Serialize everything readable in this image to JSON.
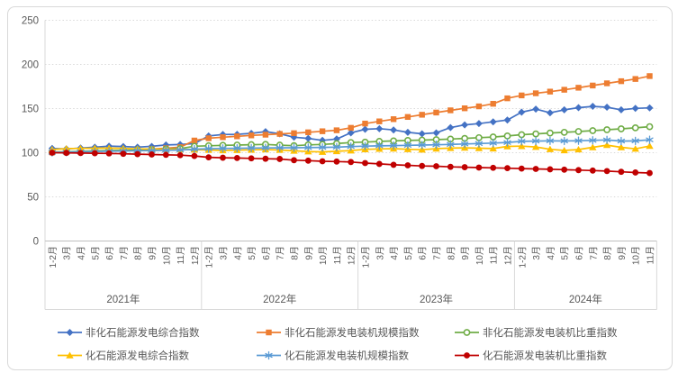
{
  "chart_data": {
    "type": "line",
    "title": "",
    "xlabel": "",
    "ylabel": "",
    "ylim": [
      0,
      250
    ],
    "y_ticks": [
      0,
      50,
      100,
      150,
      200,
      250
    ],
    "grid": true,
    "legend_position": "bottom",
    "colors": {
      "accent_blue": "#4472C4",
      "accent_orange": "#ED7D31",
      "accent_green": "#70AD47",
      "accent_yellow": "#FFC000",
      "accent_lightblue": "#5B9BD5",
      "accent_darkred": "#C00000",
      "grid_gray": "#d9d9d9",
      "axis_text": "#595959"
    },
    "years": [
      {
        "label": "2021年",
        "months": [
          "1-2月",
          "3月",
          "4月",
          "5月",
          "6月",
          "7月",
          "8月",
          "9月",
          "10月",
          "11月",
          "12月"
        ]
      },
      {
        "label": "2022年",
        "months": [
          "1-2月",
          "3月",
          "4月",
          "5月",
          "6月",
          "7月",
          "8月",
          "9月",
          "10月",
          "11月",
          "12月"
        ]
      },
      {
        "label": "2023年",
        "months": [
          "1-2月",
          "3月",
          "4月",
          "5月",
          "6月",
          "7月",
          "8月",
          "9月",
          "10月",
          "11月",
          "12月"
        ]
      },
      {
        "label": "2024年",
        "months": [
          "1-2月",
          "3月",
          "4月",
          "5月",
          "6月",
          "7月",
          "8月",
          "9月",
          "10月",
          "11月"
        ]
      }
    ],
    "series": [
      {
        "name": "非化石能源发电综合指数",
        "color": "#4472C4",
        "marker": "diamond",
        "values": [
          104.9,
          104.3,
          105.3,
          106.2,
          107.4,
          107.0,
          106.3,
          107.2,
          108.8,
          109.3,
          110.3,
          119.0,
          120.6,
          120.8,
          121.9,
          123.9,
          121.4,
          117.6,
          116.2,
          114.0,
          115.5,
          122.5,
          126.5,
          127.2,
          125.8,
          123.1,
          121.4,
          122.5,
          128.5,
          131.5,
          133.0,
          135.0,
          137.0,
          145.9,
          149.4,
          145.2,
          148.6,
          151.0,
          152.5,
          151.5,
          148.6,
          150.2,
          150.8
        ]
      },
      {
        "name": "非化石能源发电装机规模指数",
        "color": "#ED7D31",
        "marker": "square",
        "values": [
          100.3,
          100.6,
          101.0,
          101.5,
          102.1,
          102.6,
          103.3,
          104.1,
          105.1,
          106.3,
          113.8,
          116.4,
          117.6,
          118.6,
          119.6,
          120.4,
          121.3,
          122.1,
          123.1,
          124.3,
          125.4,
          128.2,
          133.0,
          135.5,
          138.0,
          140.5,
          143.0,
          145.5,
          148.0,
          150.3,
          152.5,
          155.4,
          161.6,
          164.9,
          167.3,
          169.2,
          171.3,
          173.6,
          176.1,
          178.6,
          181.0,
          183.5,
          186.8
        ]
      },
      {
        "name": "非化石能源发电装机比重指数",
        "color": "#70AD47",
        "marker": "circle-open",
        "values": [
          100.6,
          101.0,
          101.5,
          102.0,
          102.4,
          102.8,
          103.2,
          103.6,
          104.1,
          104.6,
          107.3,
          107.9,
          108.4,
          108.7,
          109.1,
          109.4,
          108.6,
          108.0,
          108.9,
          109.4,
          110.3,
          111.5,
          112.0,
          112.8,
          113.4,
          113.9,
          114.3,
          114.8,
          115.4,
          116.2,
          117.0,
          117.8,
          119.0,
          120.4,
          121.3,
          122.3,
          123.1,
          124.0,
          125.0,
          126.0,
          127.0,
          128.2,
          129.5
        ]
      },
      {
        "name": "化石能源发电综合指数",
        "color": "#FFC000",
        "marker": "triangle",
        "values": [
          103.6,
          104.6,
          104.9,
          105.1,
          105.2,
          104.9,
          104.4,
          104.1,
          103.9,
          103.6,
          103.4,
          103.1,
          102.6,
          102.9,
          103.3,
          103.6,
          103.1,
          102.1,
          101.3,
          100.9,
          101.6,
          102.4,
          103.8,
          104.3,
          104.6,
          103.9,
          103.4,
          104.6,
          105.2,
          105.5,
          105.1,
          104.7,
          107.1,
          107.4,
          106.5,
          103.9,
          102.6,
          103.6,
          106.1,
          108.6,
          106.1,
          104.4,
          107.6
        ]
      },
      {
        "name": "化石能源发电装机规模指数",
        "color": "#5B9BD5",
        "marker": "asterisk",
        "values": [
          100.4,
          100.7,
          101.0,
          101.3,
          101.6,
          101.9,
          102.2,
          102.5,
          102.8,
          103.1,
          104.0,
          104.5,
          104.8,
          105.0,
          105.2,
          105.4,
          105.5,
          105.6,
          105.8,
          106.0,
          106.3,
          106.9,
          107.5,
          107.8,
          108.1,
          108.4,
          108.7,
          109.0,
          109.4,
          109.9,
          110.4,
          110.9,
          111.6,
          112.9,
          113.2,
          113.5,
          113.3,
          113.6,
          114.0,
          114.5,
          113.2,
          113.4,
          114.6
        ]
      },
      {
        "name": "化石能源发电装机比重指数",
        "color": "#C00000",
        "marker": "circle",
        "values": [
          100.0,
          99.8,
          99.6,
          99.4,
          99.2,
          98.8,
          98.4,
          98.0,
          97.6,
          97.2,
          96.3,
          94.8,
          94.3,
          94.0,
          93.6,
          93.2,
          92.9,
          91.5,
          91.0,
          90.3,
          90.0,
          89.5,
          88.3,
          87.3,
          86.3,
          85.7,
          85.0,
          84.7,
          84.0,
          83.6,
          83.2,
          82.9,
          82.5,
          82.0,
          81.6,
          81.2,
          80.8,
          80.3,
          79.8,
          79.2,
          78.4,
          77.6,
          77.0
        ]
      }
    ]
  }
}
